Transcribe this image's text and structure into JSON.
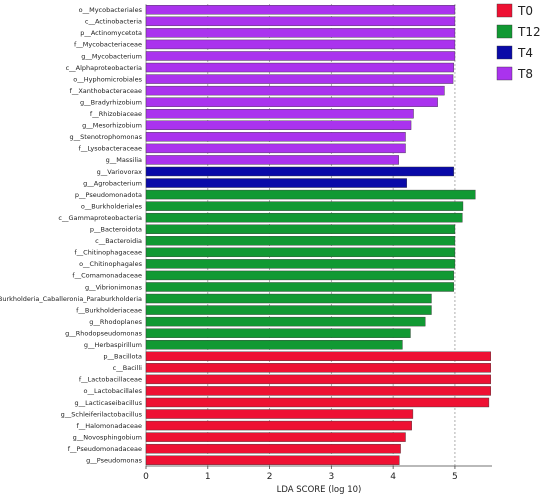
{
  "chart_data": {
    "type": "bar",
    "orientation": "horizontal",
    "xlabel": "LDA SCORE (log 10)",
    "ylabel": "",
    "xlim": [
      0,
      5.6
    ],
    "xticks": [
      0,
      1,
      2,
      3,
      4,
      5
    ],
    "grid": "vertical dashed",
    "legend_position": "top-right",
    "groups": [
      {
        "name": "T0",
        "color": "#ee1133"
      },
      {
        "name": "T12",
        "color": "#119933"
      },
      {
        "name": "T4",
        "color": "#0a0aa8"
      },
      {
        "name": "T8",
        "color": "#aa33ee"
      }
    ],
    "bars": [
      {
        "label": "o__Mycobacteriales",
        "value": 5.0,
        "group": "T8"
      },
      {
        "label": "c__Actinobacteria",
        "value": 5.0,
        "group": "T8"
      },
      {
        "label": "p__Actinomycetota",
        "value": 5.0,
        "group": "T8"
      },
      {
        "label": "f__Mycobacteriaceae",
        "value": 5.0,
        "group": "T8"
      },
      {
        "label": "g__Mycobacterium",
        "value": 5.0,
        "group": "T8"
      },
      {
        "label": "c__Alphaproteobacteria",
        "value": 4.98,
        "group": "T8"
      },
      {
        "label": "o__Hyphomicrobiales",
        "value": 4.97,
        "group": "T8"
      },
      {
        "label": "f__Xanthobacteraceae",
        "value": 4.83,
        "group": "T8"
      },
      {
        "label": "g__Bradyrhizobium",
        "value": 4.72,
        "group": "T8"
      },
      {
        "label": "f__Rhizobiaceae",
        "value": 4.33,
        "group": "T8"
      },
      {
        "label": "g__Mesorhizobium",
        "value": 4.29,
        "group": "T8"
      },
      {
        "label": "g__Stenotrophomonas",
        "value": 4.2,
        "group": "T8"
      },
      {
        "label": "f__Lysobacteraceae",
        "value": 4.2,
        "group": "T8"
      },
      {
        "label": "g__Massilia",
        "value": 4.09,
        "group": "T8"
      },
      {
        "label": "g__Variovorax",
        "value": 4.98,
        "group": "T4"
      },
      {
        "label": "g__Agrobacterium",
        "value": 4.22,
        "group": "T4"
      },
      {
        "label": "p__Pseudomonadota",
        "value": 5.33,
        "group": "T12"
      },
      {
        "label": "o__Burkholderiales",
        "value": 5.13,
        "group": "T12"
      },
      {
        "label": "c__Gammaproteobacteria",
        "value": 5.12,
        "group": "T12"
      },
      {
        "label": "p__Bacteroidota",
        "value": 5.0,
        "group": "T12"
      },
      {
        "label": "c__Bacteroidia",
        "value": 5.0,
        "group": "T12"
      },
      {
        "label": "f__Chitinophagaceae",
        "value": 5.0,
        "group": "T12"
      },
      {
        "label": "o__Chitinophagales",
        "value": 5.0,
        "group": "T12"
      },
      {
        "label": "f__Comamonadaceae",
        "value": 4.98,
        "group": "T12"
      },
      {
        "label": "g__Vibrionimonas",
        "value": 4.98,
        "group": "T12"
      },
      {
        "label": "g__Burkholderia_Caballeronia_Paraburkholderia",
        "value": 4.62,
        "group": "T12"
      },
      {
        "label": "f__Burkholderiaceae",
        "value": 4.62,
        "group": "T12"
      },
      {
        "label": "g__Rhodoplanes",
        "value": 4.52,
        "group": "T12"
      },
      {
        "label": "g__Rhodopseudomonas",
        "value": 4.28,
        "group": "T12"
      },
      {
        "label": "g__Herbaspirillum",
        "value": 4.15,
        "group": "T12"
      },
      {
        "label": "p__Bacillota",
        "value": 5.58,
        "group": "T0"
      },
      {
        "label": "c__Bacilli",
        "value": 5.58,
        "group": "T0"
      },
      {
        "label": "f__Lactobacillaceae",
        "value": 5.58,
        "group": "T0"
      },
      {
        "label": "o__Lactobacillales",
        "value": 5.58,
        "group": "T0"
      },
      {
        "label": "g__Lacticaseibacillus",
        "value": 5.55,
        "group": "T0"
      },
      {
        "label": "g__Schleiferilactobacillus",
        "value": 4.32,
        "group": "T0"
      },
      {
        "label": "f__Halomonadaceae",
        "value": 4.3,
        "group": "T0"
      },
      {
        "label": "g__Novosphingobium",
        "value": 4.2,
        "group": "T0"
      },
      {
        "label": "f__Pseudomonadaceae",
        "value": 4.12,
        "group": "T0"
      },
      {
        "label": "g__Pseudomonas",
        "value": 4.1,
        "group": "T0"
      }
    ]
  }
}
